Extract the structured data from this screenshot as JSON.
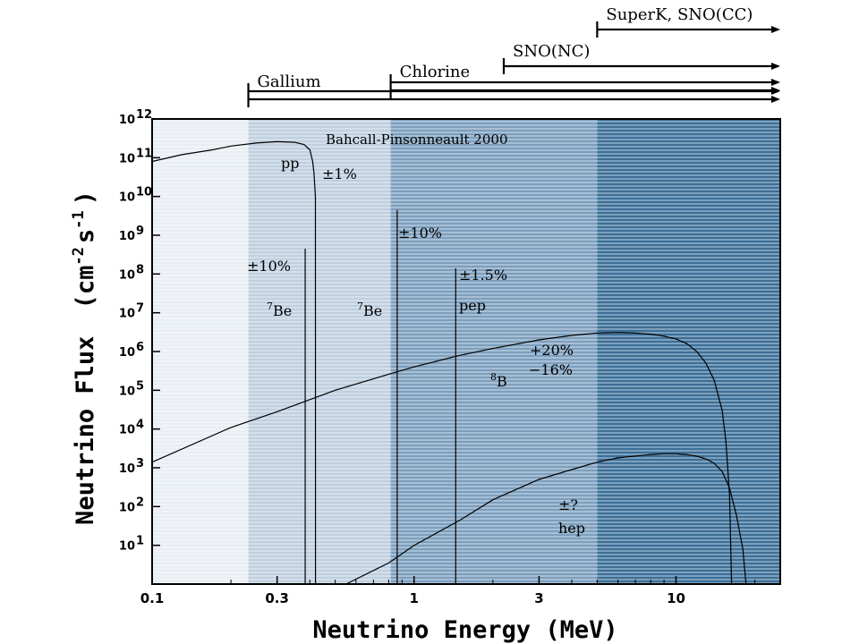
{
  "chart_data": {
    "type": "line",
    "title": "Bahcall-Pinsonneault 2000",
    "xlabel": "Neutrino Energy (MeV)",
    "ylabel": "Neutrino Flux",
    "ylabel_units": "(cm",
    "ylabel_units_2": "-2",
    "ylabel_units_3": "s",
    "ylabel_units_4": "-1",
    "ylabel_units_5": ")",
    "x_scale": "log",
    "y_scale": "log",
    "xlim": [
      0.1,
      25
    ],
    "ylim": [
      1,
      1000000000000.0
    ],
    "x_ticks": [
      {
        "value": 0.1,
        "label": "0.1"
      },
      {
        "value": 0.3,
        "label": "0.3"
      },
      {
        "value": 1,
        "label": "1"
      },
      {
        "value": 3,
        "label": "3"
      },
      {
        "value": 10,
        "label": "10"
      }
    ],
    "y_ticks": [
      {
        "exp": 1,
        "label": "10",
        "sup": "1"
      },
      {
        "exp": 2,
        "label": "10",
        "sup": "2"
      },
      {
        "exp": 3,
        "label": "10",
        "sup": "3"
      },
      {
        "exp": 4,
        "label": "10",
        "sup": "4"
      },
      {
        "exp": 5,
        "label": "10",
        "sup": "5"
      },
      {
        "exp": 6,
        "label": "10",
        "sup": "6"
      },
      {
        "exp": 7,
        "label": "10",
        "sup": "7"
      },
      {
        "exp": 8,
        "label": "10",
        "sup": "8"
      },
      {
        "exp": 9,
        "label": "10",
        "sup": "9"
      },
      {
        "exp": 10,
        "label": "10",
        "sup": "10"
      },
      {
        "exp": 11,
        "label": "10",
        "sup": "11"
      },
      {
        "exp": 12,
        "label": "10",
        "sup": "12"
      }
    ],
    "bands": [
      {
        "from": 0.1,
        "to": 0.233,
        "color": "#e9eef4"
      },
      {
        "from": 0.233,
        "to": 0.814,
        "color": "#bfcfe0"
      },
      {
        "from": 0.814,
        "to": 5.0,
        "color": "#7b9ebd"
      },
      {
        "from": 5.0,
        "to": 25,
        "color": "#3b6f98"
      }
    ],
    "detectors": [
      {
        "label": "Gallium",
        "threshold": 0.233
      },
      {
        "label": "Chlorine",
        "threshold": 0.814
      },
      {
        "label": "SNO(NC)",
        "threshold": 2.2
      },
      {
        "label": "SuperK, SNO(CC)",
        "threshold": 5.0
      }
    ],
    "series": [
      {
        "x": [
          0.1,
          0.13,
          0.17,
          0.2,
          0.25,
          0.3,
          0.35,
          0.38,
          0.4,
          0.41,
          0.415,
          0.42,
          0.4205
        ],
        "y": [
          80000000000.0,
          120000000000.0,
          160000000000.0,
          200000000000.0,
          240000000000.0,
          260000000000.0,
          250000000000.0,
          220000000000.0,
          160000000000.0,
          80000000000.0,
          40000000000.0,
          10000000000.0,
          1
        ]
      },
      {
        "x": [
          0.1,
          0.2,
          0.3,
          0.5,
          0.8,
          1,
          1.5,
          2,
          3,
          4,
          5,
          6,
          7,
          8,
          9,
          10,
          11,
          12,
          13,
          14,
          15,
          15.5,
          16,
          16.3
        ],
        "y": [
          1400.0,
          11000.0,
          28000.0,
          100000.0,
          260000.0,
          400000.0,
          800000.0,
          1200000.0,
          2000000.0,
          2600000.0,
          3000000.0,
          3100000.0,
          3000000.0,
          2800000.0,
          2500000.0,
          2100000.0,
          1600000.0,
          1000000.0,
          500000.0,
          180000.0,
          30000.0,
          5000.0,
          200.0,
          1
        ]
      },
      {
        "x": [
          0.55,
          0.8,
          1,
          1.5,
          2,
          3,
          4,
          5,
          6,
          8,
          9,
          10,
          11,
          12,
          13,
          14,
          15,
          16,
          17,
          18,
          18.5
        ],
        "y": [
          1,
          3.5,
          10,
          45,
          150.0,
          500.0,
          900.0,
          1400.0,
          1800.0,
          2200.0,
          2300.0,
          2300.0,
          2200.0,
          2000.0,
          1700.0,
          1300.0,
          800.0,
          300.0,
          60,
          8,
          1
        ]
      }
    ],
    "lines": [
      {
        "energy": 0.384,
        "flux": 450000000.0
      },
      {
        "energy": 0.862,
        "flux": 4500000000.0
      },
      {
        "energy": 1.442,
        "flux": 140000000.0
      }
    ],
    "labels": {
      "pp": "pp",
      "pp_unc": "±1%",
      "be7_a": "Be",
      "be7_a_sup": "7",
      "be7_a_unc": "±10%",
      "be7_b": "Be",
      "be7_b_sup": "7",
      "be7_b_unc": "±10%",
      "pep": "pep",
      "pep_unc": "±1.5%",
      "b8": "B",
      "b8_sup": "8",
      "b8_unc_up": "+20%",
      "b8_unc_down": "−16%",
      "hep": "hep",
      "hep_unc": "±?"
    }
  }
}
